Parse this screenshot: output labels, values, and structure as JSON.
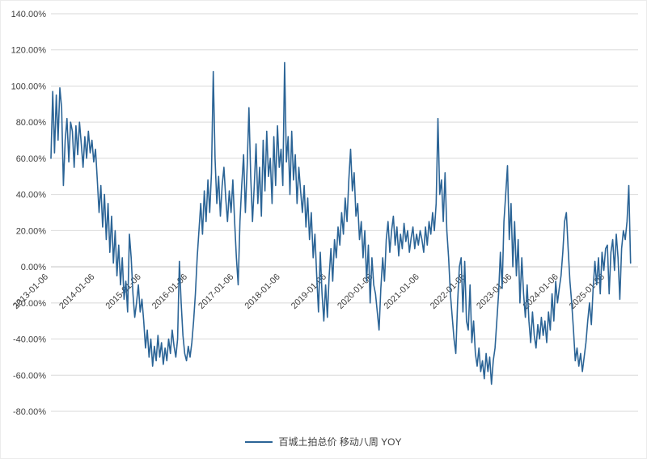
{
  "chart_data": {
    "type": "line",
    "title": "",
    "legend": "百城土拍总价 移动八周 YOY",
    "legend_position": "bottom",
    "grid": true,
    "line_color": "#2B6496",
    "gridline_color": "#D9D9D9",
    "zero_axis_color": "#BFBFBF",
    "axis_label_color": "#404040",
    "ylabel": "",
    "xlabel": "",
    "ylim": [
      -80,
      140
    ],
    "y_ticks_percent": [
      140,
      120,
      100,
      80,
      60,
      40,
      20,
      0,
      -20,
      -40,
      -60,
      -80
    ],
    "y_tick_labels": [
      "140.00%",
      "120.00%",
      "100.00%",
      "80.00%",
      "60.00%",
      "40.00%",
      "20.00%",
      "0.00%",
      "-20.00%",
      "-40.00%",
      "-60.00%",
      "-80.00%"
    ],
    "x_tick_labels": [
      "2013-01-06",
      "2014-01-06",
      "2015-01-06",
      "2016-01-06",
      "2017-01-06",
      "2018-01-06",
      "2019-01-06",
      "2020-01-06",
      "2021-01-06",
      "2022-01-06",
      "2023-01-06",
      "2024-01-06",
      "2025-01-06"
    ],
    "x_start_year": 2013.0,
    "samples_per_year": 26,
    "series": [
      {
        "name": "百城土拍总价 移动八周 YOY",
        "unit": "%",
        "values": [
          60,
          97,
          63,
          95,
          70,
          99,
          88,
          45,
          70,
          82,
          58,
          80,
          75,
          55,
          78,
          62,
          80,
          68,
          55,
          72,
          60,
          75,
          63,
          70,
          58,
          65,
          48,
          30,
          45,
          22,
          40,
          15,
          35,
          8,
          28,
          2,
          20,
          -5,
          12,
          -10,
          5,
          -18,
          -8,
          -25,
          18,
          5,
          -15,
          -28,
          -20,
          -10,
          -25,
          -18,
          -30,
          -45,
          -35,
          -50,
          -40,
          -55,
          -44,
          -52,
          -38,
          -50,
          -42,
          -54,
          -45,
          -52,
          -40,
          -48,
          -35,
          -44,
          -50,
          -40,
          3,
          -20,
          -38,
          -48,
          -52,
          -44,
          -50,
          -42,
          -30,
          -15,
          5,
          20,
          35,
          18,
          42,
          25,
          48,
          30,
          52,
          108,
          60,
          35,
          50,
          28,
          45,
          55,
          38,
          25,
          42,
          30,
          48,
          25,
          5,
          -10,
          25,
          45,
          62,
          30,
          55,
          88,
          50,
          25,
          45,
          68,
          35,
          55,
          28,
          70,
          42,
          75,
          50,
          60,
          35,
          72,
          45,
          78,
          55,
          65,
          45,
          113,
          58,
          72,
          40,
          75,
          48,
          62,
          35,
          55,
          42,
          30,
          45,
          22,
          38,
          15,
          30,
          5,
          18,
          -5,
          -25,
          8,
          -15,
          -30,
          -10,
          -28,
          -5,
          10,
          -8,
          15,
          5,
          22,
          12,
          30,
          18,
          38,
          25,
          48,
          65,
          42,
          52,
          28,
          35,
          15,
          25,
          5,
          20,
          -8,
          12,
          -20,
          5,
          -10,
          -15,
          -25,
          -35,
          -12,
          5,
          -8,
          15,
          25,
          8,
          20,
          28,
          12,
          22,
          6,
          18,
          10,
          24,
          14,
          20,
          8,
          16,
          22,
          10,
          18,
          12,
          20,
          15,
          8,
          22,
          12,
          25,
          18,
          30,
          20,
          35,
          82,
          40,
          48,
          25,
          52,
          20,
          5,
          -15,
          -28,
          -40,
          -48,
          -20,
          0,
          5,
          -25,
          3,
          -30,
          -35,
          -10,
          -42,
          -30,
          -48,
          -55,
          -45,
          -58,
          -52,
          -62,
          -48,
          -58,
          -50,
          -65,
          -52,
          -45,
          -30,
          -15,
          8,
          -12,
          25,
          40,
          56,
          15,
          35,
          0,
          25,
          -5,
          15,
          -20,
          5,
          -15,
          -28,
          -10,
          -30,
          -42,
          -25,
          -38,
          -45,
          -32,
          -40,
          -28,
          -38,
          -30,
          -42,
          -25,
          -35,
          -15,
          -30,
          -8,
          -20,
          -12,
          -5,
          8,
          25,
          30,
          10,
          -8,
          -20,
          -35,
          -52,
          -45,
          -55,
          -48,
          -58,
          -50,
          -42,
          -30,
          -20,
          -32,
          -12,
          3,
          -10,
          5,
          -15,
          8,
          -2,
          10,
          12,
          -15,
          8,
          15,
          -2,
          18,
          5,
          -18,
          10,
          20,
          15,
          25,
          45,
          2
        ]
      }
    ]
  }
}
